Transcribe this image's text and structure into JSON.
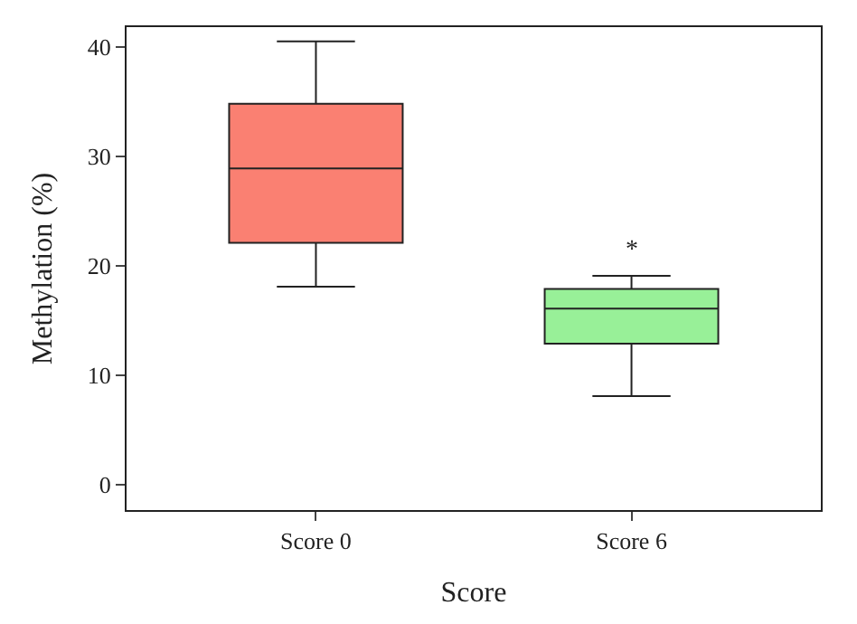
{
  "chart_data": {
    "type": "box",
    "xlabel": "Score",
    "ylabel": "Methylation (%)",
    "categories": [
      "Score 0",
      "Score 6"
    ],
    "boxes": [
      {
        "low": 18.1,
        "q1": 22.1,
        "median": 28.9,
        "q3": 34.8,
        "high": 40.5
      },
      {
        "low": 8.1,
        "q1": 12.9,
        "median": 16.1,
        "q3": 17.9,
        "high": 19.1
      }
    ],
    "colors": [
      "#fa8072",
      "#98f098"
    ],
    "annotations": [
      "*"
    ],
    "ylim": [
      -2.3,
      41.8
    ],
    "yticks": [
      0,
      10,
      20,
      30,
      40
    ]
  }
}
